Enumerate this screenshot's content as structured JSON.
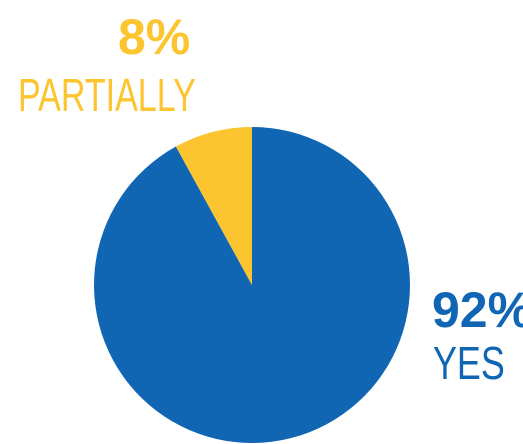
{
  "chart_data": {
    "type": "pie",
    "slices": [
      {
        "label": "YES",
        "value_label": "92%",
        "value": 92,
        "color": "#1166B3"
      },
      {
        "label": "PARTIALLY",
        "value_label": "8%",
        "value": 8,
        "color": "#FCC42E"
      }
    ],
    "legend": "none"
  }
}
